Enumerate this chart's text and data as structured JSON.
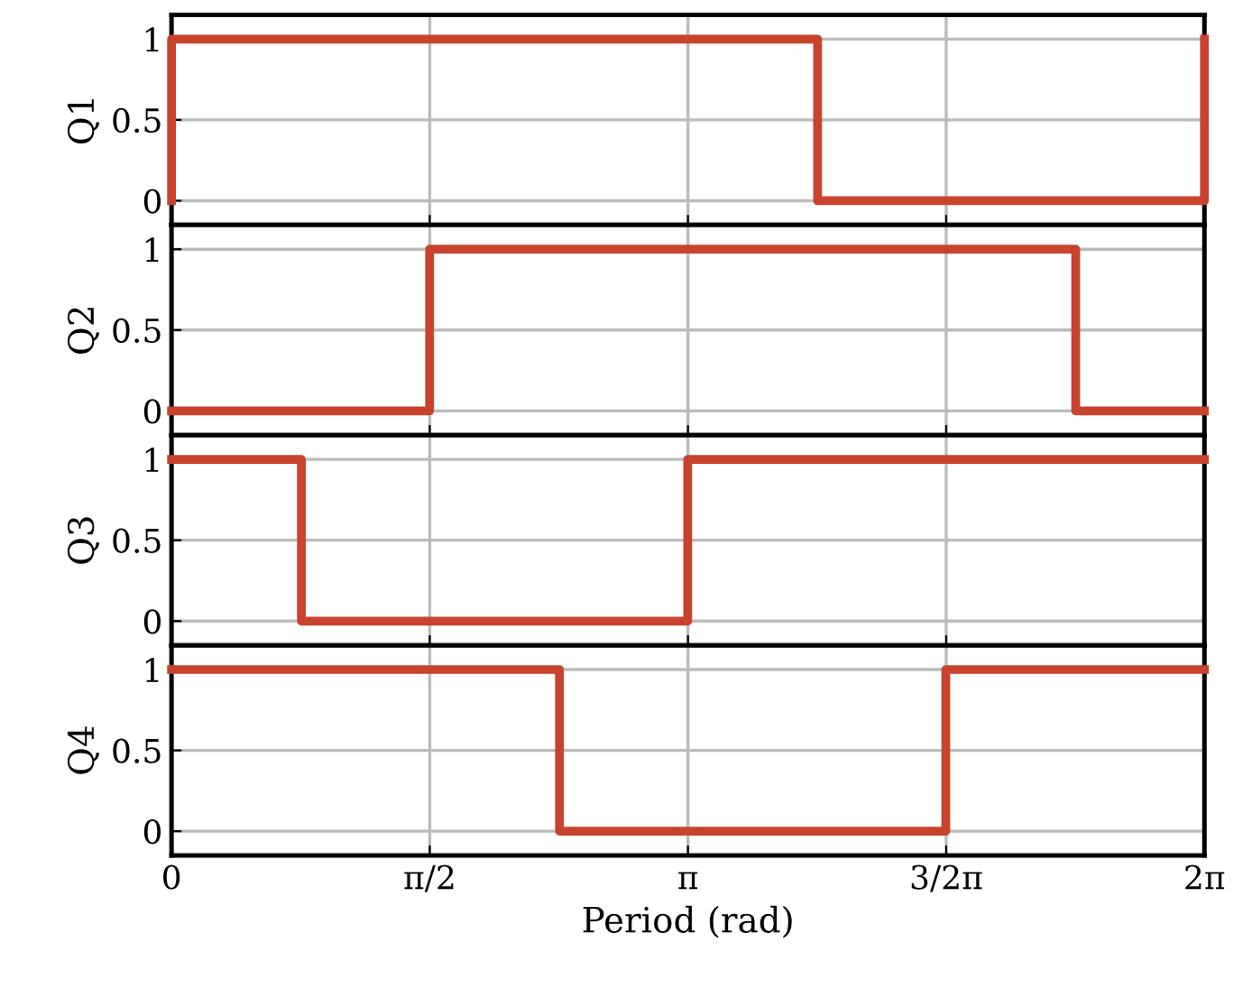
{
  "chart_data": [
    {
      "type": "step",
      "ylabel": "Q1",
      "x": [
        0,
        0,
        3.93,
        6.2832
      ],
      "values": [
        0,
        1,
        0,
        1
      ],
      "color": "#c8422c",
      "xlim": [
        0,
        6.2832
      ],
      "ylim": [
        -0.15,
        1.15
      ],
      "yticks": [
        0,
        0.5,
        1
      ],
      "xticks": [
        {
          "value": 0,
          "label": null
        },
        {
          "value": 1.5708,
          "label": null
        },
        {
          "value": 3.1416,
          "label": null
        },
        {
          "value": 4.7124,
          "label": null
        },
        {
          "value": 6.2832,
          "label": null
        }
      ],
      "grid": true,
      "tick_labels": "y"
    },
    {
      "type": "step",
      "ylabel": "Q2",
      "x": [
        0,
        1.57,
        5.5,
        6.2832
      ],
      "values": [
        0,
        1,
        0,
        0
      ],
      "color": "#c8422c",
      "xlim": [
        0,
        6.2832
      ],
      "ylim": [
        -0.15,
        1.15
      ],
      "yticks": [
        0,
        0.5,
        1
      ],
      "xticks": [
        {
          "value": 0,
          "label": null
        },
        {
          "value": 1.5708,
          "label": null
        },
        {
          "value": 3.1416,
          "label": null
        },
        {
          "value": 4.7124,
          "label": null
        },
        {
          "value": 6.2832,
          "label": null
        }
      ],
      "grid": true,
      "tick_labels": "y"
    },
    {
      "type": "step",
      "ylabel": "Q3",
      "x": [
        0,
        0.79,
        3.14,
        6.2832
      ],
      "values": [
        1,
        0,
        1,
        1
      ],
      "color": "#c8422c",
      "xlim": [
        0,
        6.2832
      ],
      "ylim": [
        -0.15,
        1.15
      ],
      "yticks": [
        0,
        0.5,
        1
      ],
      "xticks": [
        {
          "value": 0,
          "label": null
        },
        {
          "value": 1.5708,
          "label": null
        },
        {
          "value": 3.1416,
          "label": null
        },
        {
          "value": 4.7124,
          "label": null
        },
        {
          "value": 6.2832,
          "label": null
        }
      ],
      "grid": true,
      "tick_labels": "y"
    },
    {
      "type": "step",
      "ylabel": "Q4",
      "xlabel": "Period (rad)",
      "x": [
        0,
        2.36,
        4.71,
        6.2832
      ],
      "values": [
        1,
        0,
        1,
        1
      ],
      "color": "#c8422c",
      "xlim": [
        0,
        6.2832
      ],
      "ylim": [
        -0.15,
        1.15
      ],
      "yticks": [
        0,
        0.5,
        1
      ],
      "xticks": [
        {
          "value": 0,
          "label": "0"
        },
        {
          "value": 1.5708,
          "label": "π/2"
        },
        {
          "value": 3.1416,
          "label": "π"
        },
        {
          "value": 4.7124,
          "label": "3/2π"
        },
        {
          "value": 6.2832,
          "label": "2π"
        }
      ],
      "grid": true
    }
  ]
}
